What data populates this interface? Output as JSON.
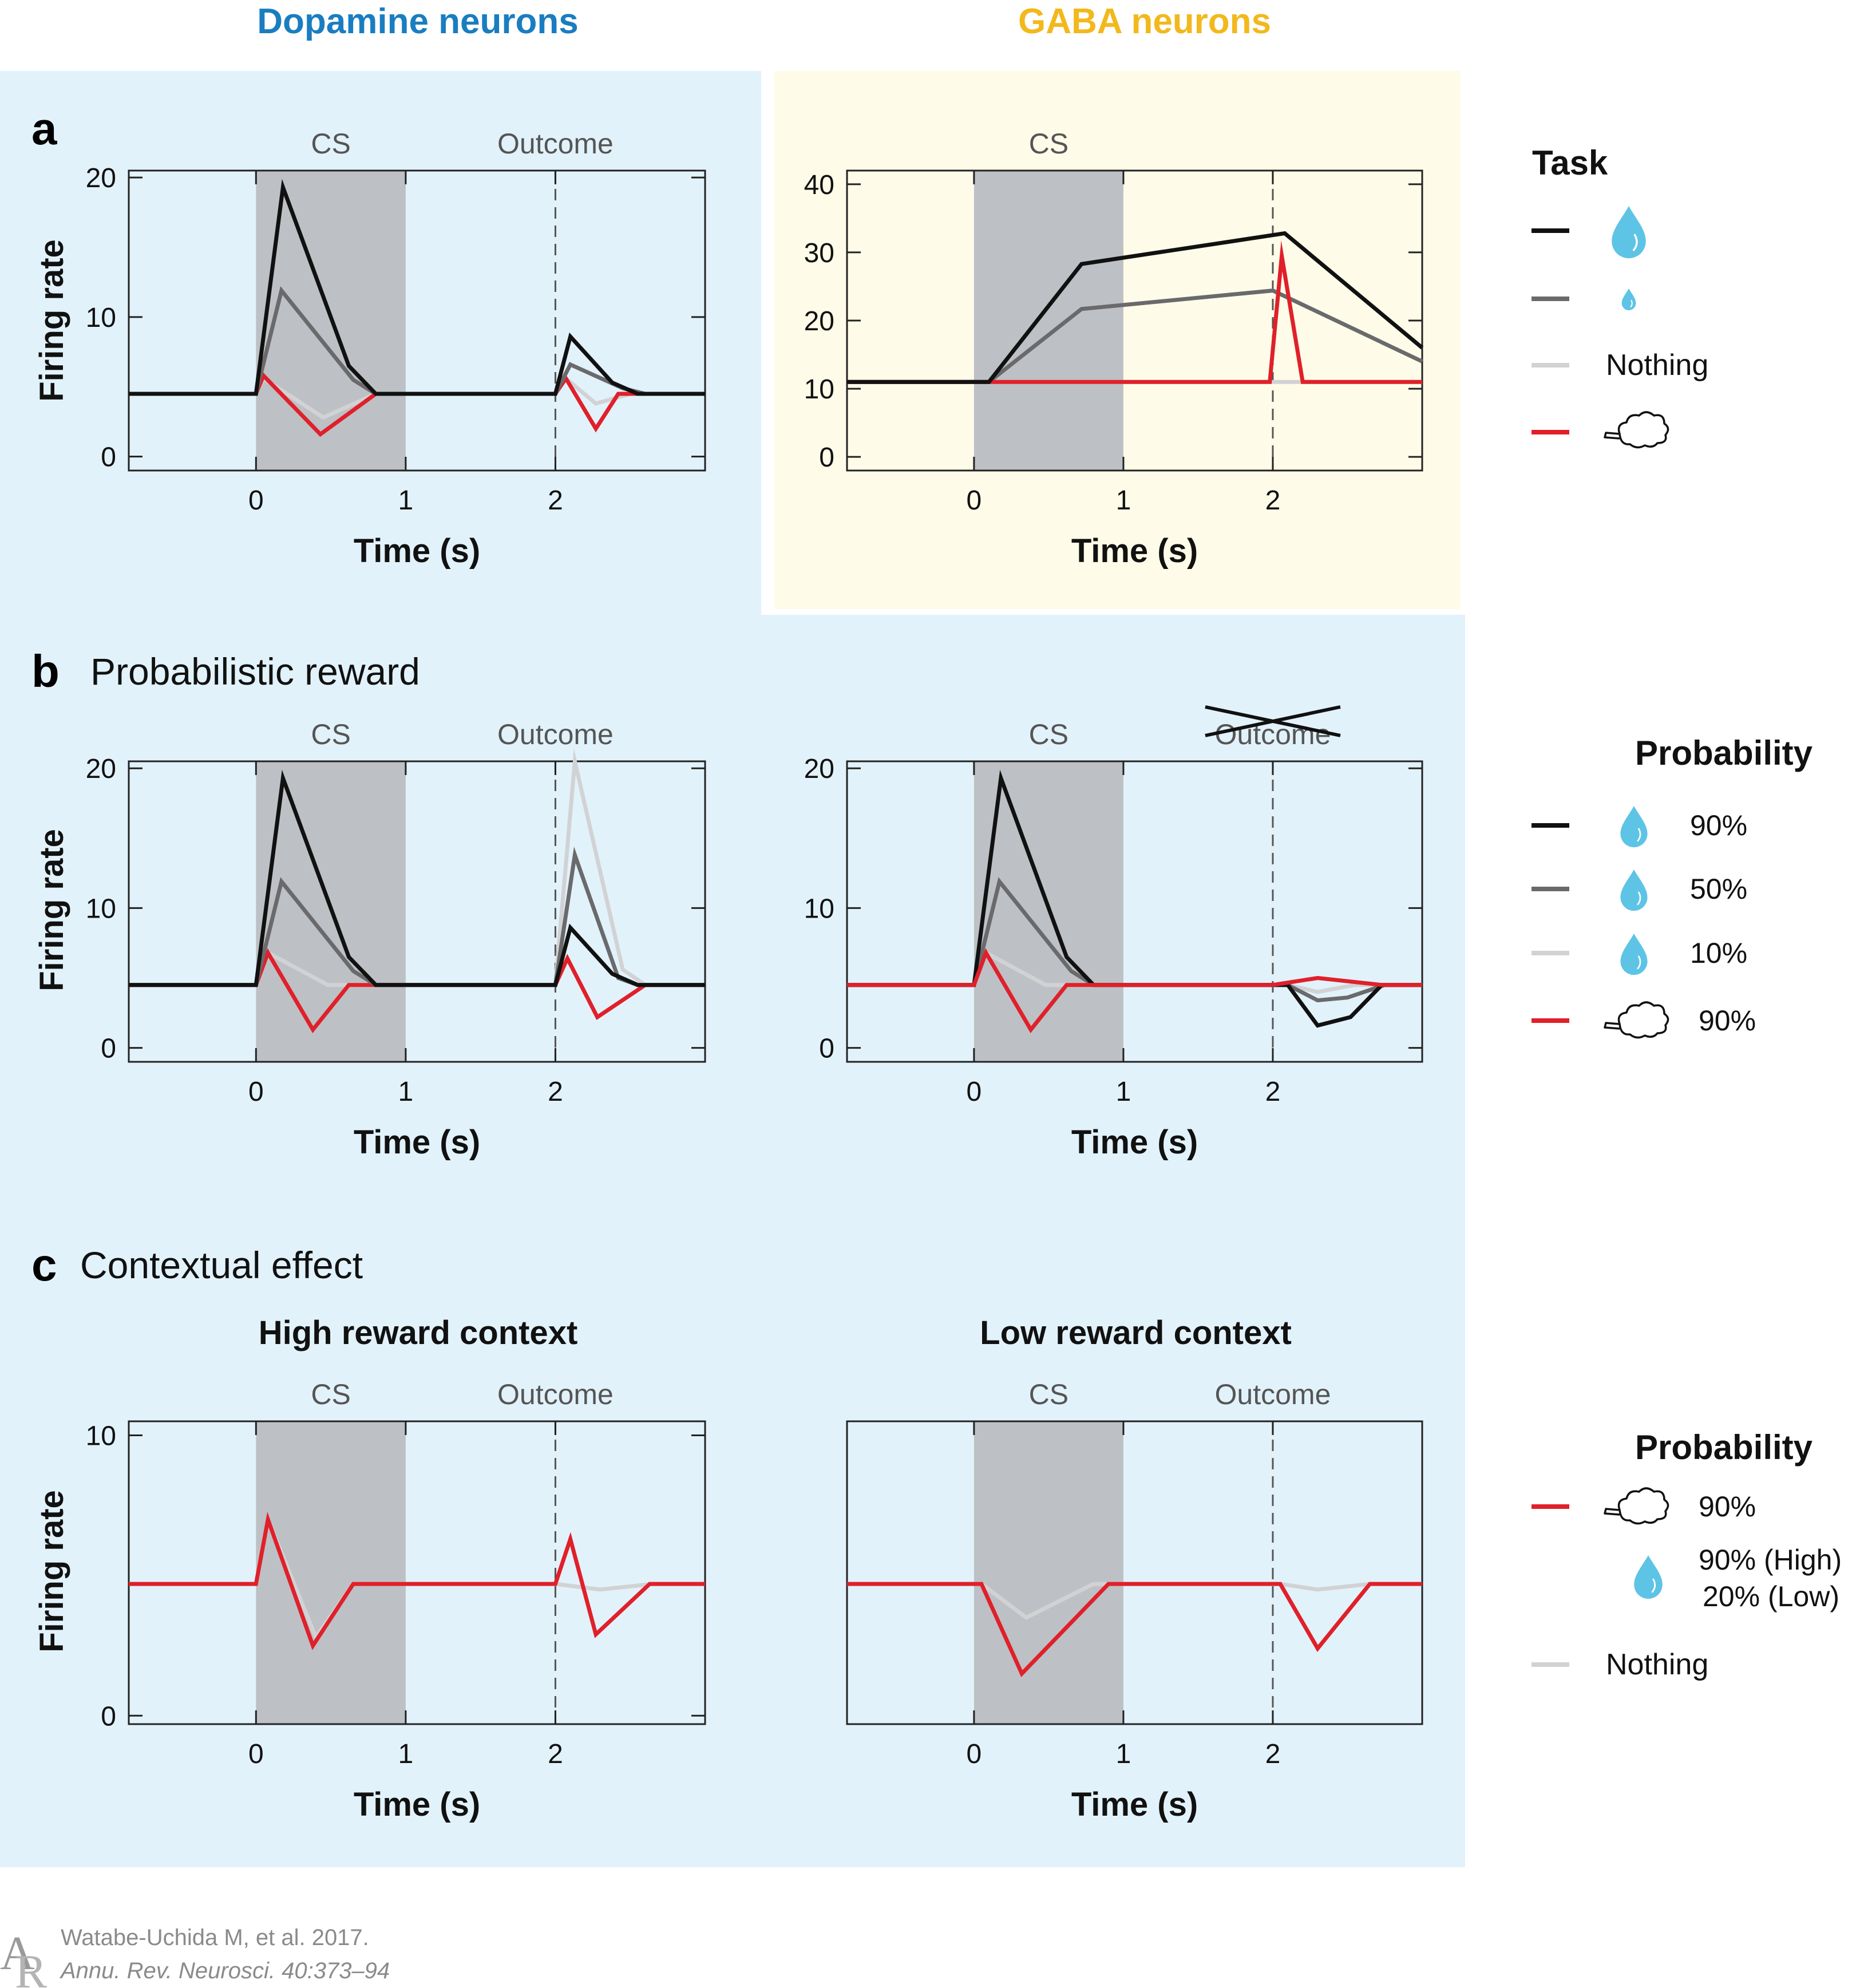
{
  "headers": {
    "dopamine": "Dopamine neurons",
    "gaba": "GABA neurons"
  },
  "colors": {
    "dopamine_header": "#1a7dc1",
    "gaba_header": "#f2b81c",
    "panel_blue": "#e2f2fb",
    "panel_yellow": "#fefce8",
    "shade": "#bdc1c5",
    "black": "#111111",
    "dark_gray": "#6a6a6c",
    "light_gray": "#d2d2d4",
    "red": "#e0202a",
    "drop": "#5ec4e6",
    "label_gray": "#555555"
  },
  "panel_labels": {
    "a": "a",
    "b": "b",
    "b_title": "Probabilistic reward",
    "c": "c",
    "c_title": "Contextual effect"
  },
  "shared": {
    "xlabel": "Time (s)",
    "ylabel": "Firing rate",
    "cs_label": "CS",
    "outcome_label": "Outcome"
  },
  "chart_data": [
    {
      "id": "a_dopamine",
      "type": "line",
      "panel": "a",
      "neurons": "Dopamine neurons",
      "xlabel": "Time (s)",
      "ylabel": "Firing rate",
      "xlim": [
        -0.85,
        3.0
      ],
      "ylim": [
        -1,
        20.5
      ],
      "xticks": [
        0,
        1,
        2
      ],
      "yticks": [
        0,
        10,
        20
      ],
      "annotations": {
        "cs_region": [
          0,
          1
        ],
        "cs_label": "CS",
        "outcome_time": 2,
        "outcome_label": "Outcome"
      },
      "series": [
        {
          "key": "nothing",
          "color": "light_gray",
          "points": [
            [
              -0.85,
              4.5
            ],
            [
              0,
              4.5
            ],
            [
              0.05,
              5.6
            ],
            [
              0.45,
              2.8
            ],
            [
              0.8,
              4.5
            ],
            [
              2.0,
              4.5
            ],
            [
              2.07,
              5.6
            ],
            [
              2.27,
              3.8
            ],
            [
              2.5,
              4.5
            ],
            [
              3.0,
              4.5
            ]
          ]
        },
        {
          "key": "air_puff",
          "color": "red",
          "points": [
            [
              -0.85,
              4.5
            ],
            [
              0,
              4.5
            ],
            [
              0.05,
              5.8
            ],
            [
              0.43,
              1.6
            ],
            [
              0.8,
              4.5
            ],
            [
              2.0,
              4.5
            ],
            [
              2.07,
              5.6
            ],
            [
              2.27,
              2.0
            ],
            [
              2.42,
              4.5
            ],
            [
              3.0,
              4.5
            ]
          ]
        },
        {
          "key": "small_reward",
          "color": "dark_gray",
          "points": [
            [
              -0.85,
              4.5
            ],
            [
              0,
              4.5
            ],
            [
              0.17,
              11.9
            ],
            [
              0.65,
              5.5
            ],
            [
              0.8,
              4.5
            ],
            [
              2.0,
              4.5
            ],
            [
              2.1,
              6.6
            ],
            [
              2.45,
              4.9
            ],
            [
              2.6,
              4.5
            ],
            [
              3.0,
              4.5
            ]
          ]
        },
        {
          "key": "large_reward",
          "color": "black",
          "points": [
            [
              -0.85,
              4.5
            ],
            [
              0,
              4.5
            ],
            [
              0.18,
              19.3
            ],
            [
              0.62,
              6.5
            ],
            [
              0.8,
              4.5
            ],
            [
              2.0,
              4.5
            ],
            [
              2.1,
              8.6
            ],
            [
              2.38,
              5.3
            ],
            [
              2.55,
              4.5
            ],
            [
              3.0,
              4.5
            ]
          ]
        }
      ]
    },
    {
      "id": "a_gaba",
      "type": "line",
      "panel": "a",
      "neurons": "GABA neurons",
      "xlabel": "Time (s)",
      "ylabel": "",
      "xlim": [
        -0.85,
        3.0
      ],
      "ylim": [
        -2,
        42
      ],
      "xticks": [
        0,
        1,
        2
      ],
      "yticks": [
        0,
        10,
        20,
        30,
        40
      ],
      "annotations": {
        "cs_region": [
          0,
          1
        ],
        "cs_label": "CS",
        "outcome_time": 2,
        "outcome_label": ""
      },
      "series": [
        {
          "key": "nothing",
          "color": "light_gray",
          "points": [
            [
              -0.85,
              11
            ],
            [
              3.0,
              11
            ]
          ]
        },
        {
          "key": "small_reward",
          "color": "dark_gray",
          "points": [
            [
              -0.85,
              11
            ],
            [
              0.1,
              11
            ],
            [
              0.72,
              21.7
            ],
            [
              2.0,
              24.4
            ],
            [
              3.0,
              14
            ]
          ]
        },
        {
          "key": "air_puff",
          "color": "red",
          "points": [
            [
              -0.85,
              11
            ],
            [
              1.98,
              11
            ],
            [
              2.06,
              29.5
            ],
            [
              2.2,
              11
            ],
            [
              3.0,
              11
            ]
          ]
        },
        {
          "key": "large_reward",
          "color": "black",
          "points": [
            [
              -0.85,
              11
            ],
            [
              0.1,
              11
            ],
            [
              0.72,
              28.3
            ],
            [
              2.08,
              32.8
            ],
            [
              3.0,
              16
            ]
          ]
        }
      ]
    },
    {
      "id": "b_outcome",
      "type": "line",
      "panel": "b",
      "neurons": "Dopamine neurons",
      "xlabel": "Time (s)",
      "ylabel": "Firing rate",
      "xlim": [
        -0.85,
        3.0
      ],
      "ylim": [
        -1,
        20.5
      ],
      "xticks": [
        0,
        1,
        2
      ],
      "yticks": [
        0,
        10,
        20
      ],
      "annotations": {
        "cs_region": [
          0,
          1
        ],
        "cs_label": "CS",
        "outcome_time": 2,
        "outcome_label": "Outcome"
      },
      "series": [
        {
          "key": "p10",
          "color": "light_gray",
          "points": [
            [
              -0.85,
              4.5
            ],
            [
              0,
              4.5
            ],
            [
              0.08,
              6.8
            ],
            [
              0.48,
              4.5
            ],
            [
              0.8,
              4.5
            ],
            [
              2.0,
              4.5
            ],
            [
              2.13,
              20.5
            ],
            [
              2.45,
              5.6
            ],
            [
              2.6,
              4.5
            ],
            [
              3.0,
              4.5
            ]
          ]
        },
        {
          "key": "air_puff",
          "color": "red",
          "points": [
            [
              -0.85,
              4.5
            ],
            [
              0,
              4.5
            ],
            [
              0.08,
              6.8
            ],
            [
              0.38,
              1.3
            ],
            [
              0.62,
              4.5
            ],
            [
              2.0,
              4.5
            ],
            [
              2.08,
              6.4
            ],
            [
              2.28,
              2.2
            ],
            [
              2.6,
              4.5
            ],
            [
              3.0,
              4.5
            ]
          ]
        },
        {
          "key": "p50",
          "color": "dark_gray",
          "points": [
            [
              -0.85,
              4.5
            ],
            [
              0,
              4.5
            ],
            [
              0.17,
              11.9
            ],
            [
              0.65,
              5.5
            ],
            [
              0.8,
              4.5
            ],
            [
              2.0,
              4.5
            ],
            [
              2.13,
              13.8
            ],
            [
              2.42,
              5.0
            ],
            [
              2.55,
              4.5
            ],
            [
              3.0,
              4.5
            ]
          ]
        },
        {
          "key": "p90",
          "color": "black",
          "points": [
            [
              -0.85,
              4.5
            ],
            [
              0,
              4.5
            ],
            [
              0.18,
              19.3
            ],
            [
              0.62,
              6.5
            ],
            [
              0.8,
              4.5
            ],
            [
              2.0,
              4.5
            ],
            [
              2.1,
              8.6
            ],
            [
              2.38,
              5.3
            ],
            [
              2.55,
              4.5
            ],
            [
              3.0,
              4.5
            ]
          ]
        }
      ]
    },
    {
      "id": "b_omission",
      "type": "line",
      "panel": "b",
      "neurons": "Dopamine neurons",
      "xlabel": "Time (s)",
      "ylabel": "",
      "xlim": [
        -0.85,
        3.0
      ],
      "ylim": [
        -1,
        20.5
      ],
      "xticks": [
        0,
        1,
        2
      ],
      "yticks": [
        0,
        10,
        20
      ],
      "annotations": {
        "cs_region": [
          0,
          1
        ],
        "cs_label": "CS",
        "outcome_time": 2,
        "outcome_label": "Outcome",
        "outcome_crossed": true
      },
      "series": [
        {
          "key": "p10",
          "color": "light_gray",
          "points": [
            [
              -0.85,
              4.5
            ],
            [
              0,
              4.5
            ],
            [
              0.08,
              6.8
            ],
            [
              0.48,
              4.5
            ],
            [
              0.8,
              4.5
            ],
            [
              2.1,
              4.5
            ],
            [
              2.3,
              4.0
            ],
            [
              2.55,
              4.5
            ],
            [
              3.0,
              4.5
            ]
          ]
        },
        {
          "key": "p50",
          "color": "dark_gray",
          "points": [
            [
              -0.85,
              4.5
            ],
            [
              0,
              4.5
            ],
            [
              0.17,
              11.9
            ],
            [
              0.65,
              5.5
            ],
            [
              0.8,
              4.5
            ],
            [
              2.1,
              4.5
            ],
            [
              2.3,
              3.4
            ],
            [
              2.5,
              3.6
            ],
            [
              2.75,
              4.5
            ],
            [
              3.0,
              4.5
            ]
          ]
        },
        {
          "key": "p90",
          "color": "black",
          "points": [
            [
              -0.85,
              4.5
            ],
            [
              0,
              4.5
            ],
            [
              0.18,
              19.3
            ],
            [
              0.62,
              6.5
            ],
            [
              0.8,
              4.5
            ],
            [
              2.1,
              4.5
            ],
            [
              2.3,
              1.6
            ],
            [
              2.52,
              2.2
            ],
            [
              2.73,
              4.5
            ],
            [
              3.0,
              4.5
            ]
          ]
        },
        {
          "key": "air_puff",
          "color": "red",
          "points": [
            [
              -0.85,
              4.5
            ],
            [
              0,
              4.5
            ],
            [
              0.08,
              6.8
            ],
            [
              0.38,
              1.3
            ],
            [
              0.62,
              4.5
            ],
            [
              2.0,
              4.5
            ],
            [
              2.3,
              5.0
            ],
            [
              2.73,
              4.5
            ],
            [
              3.0,
              4.5
            ]
          ]
        }
      ]
    },
    {
      "id": "c_high",
      "type": "line",
      "panel": "c",
      "title": "High reward context",
      "xlabel": "Time (s)",
      "ylabel": "Firing rate",
      "xlim": [
        -0.85,
        3.0
      ],
      "ylim": [
        -0.3,
        10.5
      ],
      "xticks": [
        0,
        1,
        2
      ],
      "yticks": [
        0,
        10
      ],
      "annotations": {
        "cs_region": [
          0,
          1
        ],
        "cs_label": "CS",
        "outcome_time": 2,
        "outcome_label": "Outcome"
      },
      "series": [
        {
          "key": "nothing",
          "color": "light_gray",
          "points": [
            [
              -0.85,
              4.7
            ],
            [
              0,
              4.7
            ],
            [
              0.08,
              7.0
            ],
            [
              0.4,
              2.8
            ],
            [
              0.65,
              4.7
            ],
            [
              2.0,
              4.7
            ],
            [
              2.3,
              4.5
            ],
            [
              2.65,
              4.7
            ],
            [
              3.0,
              4.7
            ]
          ]
        },
        {
          "key": "air_puff",
          "color": "red",
          "points": [
            [
              -0.85,
              4.7
            ],
            [
              0,
              4.7
            ],
            [
              0.08,
              7.0
            ],
            [
              0.38,
              2.5
            ],
            [
              0.65,
              4.7
            ],
            [
              2.0,
              4.7
            ],
            [
              2.1,
              6.3
            ],
            [
              2.27,
              2.9
            ],
            [
              2.63,
              4.7
            ],
            [
              3.0,
              4.7
            ]
          ]
        }
      ]
    },
    {
      "id": "c_low",
      "type": "line",
      "panel": "c",
      "title": "Low reward context",
      "xlabel": "Time (s)",
      "ylabel": "",
      "xlim": [
        -0.85,
        3.0
      ],
      "ylim": [
        -0.3,
        10.5
      ],
      "xticks": [
        0,
        1,
        2
      ],
      "yticks": [],
      "annotations": {
        "cs_region": [
          0,
          1
        ],
        "cs_label": "CS",
        "outcome_time": 2,
        "outcome_label": "Outcome"
      },
      "series": [
        {
          "key": "nothing",
          "color": "light_gray",
          "points": [
            [
              -0.85,
              4.7
            ],
            [
              0.05,
              4.7
            ],
            [
              0.35,
              3.5
            ],
            [
              0.8,
              4.7
            ],
            [
              2.05,
              4.7
            ],
            [
              2.3,
              4.5
            ],
            [
              2.65,
              4.7
            ],
            [
              3.0,
              4.7
            ]
          ]
        },
        {
          "key": "air_puff",
          "color": "red",
          "points": [
            [
              -0.85,
              4.7
            ],
            [
              0.05,
              4.7
            ],
            [
              0.32,
              1.5
            ],
            [
              0.9,
              4.7
            ],
            [
              2.05,
              4.7
            ],
            [
              2.3,
              2.4
            ],
            [
              2.65,
              4.7
            ],
            [
              3.0,
              4.7
            ]
          ]
        }
      ]
    }
  ],
  "legends": {
    "task": {
      "title": "Task",
      "items": [
        {
          "line": "black",
          "icon": "water-drop-large-icon",
          "label": ""
        },
        {
          "line": "dark_gray",
          "icon": "water-drop-small-icon",
          "label": ""
        },
        {
          "line": "light_gray",
          "icon": "",
          "label": "Nothing"
        },
        {
          "line": "red",
          "icon": "air-puff-icon",
          "label": ""
        }
      ]
    },
    "probability_b": {
      "title": "Probability",
      "items": [
        {
          "line": "black",
          "icon": "water-drop-icon",
          "label": "90%"
        },
        {
          "line": "dark_gray",
          "icon": "water-drop-icon",
          "label": "50%"
        },
        {
          "line": "light_gray",
          "icon": "water-drop-icon",
          "label": "10%"
        },
        {
          "line": "red",
          "icon": "air-puff-icon",
          "label": "90%"
        }
      ]
    },
    "probability_c": {
      "title": "Probability",
      "items": [
        {
          "line": "red",
          "icon": "air-puff-icon",
          "label": "90%"
        },
        {
          "line": "",
          "icon": "water-drop-icon",
          "label": "90% (High)",
          "label2": "20% (Low)"
        },
        {
          "line": "light_gray",
          "icon": "",
          "label": "Nothing"
        }
      ]
    }
  },
  "citation": {
    "logo": "AR",
    "line1": "Watabe-Uchida M, et al. 2017.",
    "line2": "Annu. Rev. Neurosci. 40:373–94"
  }
}
